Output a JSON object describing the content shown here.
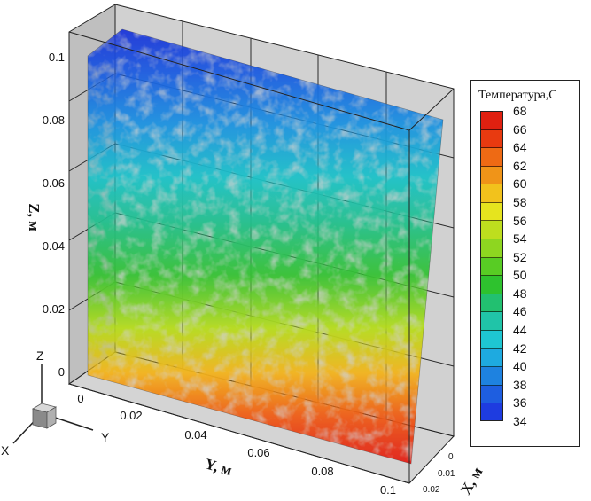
{
  "axes": {
    "z_title": "Z, м",
    "y_title": "Y, м",
    "x_title": "X, м",
    "z_ticks": [
      "0",
      "0.02",
      "0.04",
      "0.06",
      "0.08",
      "0.1"
    ],
    "y_ticks": [
      "0",
      "0.02",
      "0.04",
      "0.06",
      "0.08",
      "0.1"
    ],
    "x_ticks": [
      "0",
      "0.01",
      "0.02"
    ]
  },
  "triad": {
    "x": "X",
    "y": "Y",
    "z": "Z"
  },
  "legend": {
    "title": "Температура,C",
    "levels": [
      68,
      66,
      64,
      62,
      60,
      58,
      56,
      54,
      52,
      50,
      48,
      46,
      44,
      42,
      40,
      38,
      36,
      34
    ],
    "colors": [
      "#e02010",
      "#e83a10",
      "#ee6a14",
      "#f09418",
      "#f2c21c",
      "#e6e41e",
      "#bede1e",
      "#8ed620",
      "#58cc24",
      "#2ec22e",
      "#22c070",
      "#20c4a8",
      "#1ec6d2",
      "#1eaae0",
      "#1e82e0",
      "#1e5ee0",
      "#1e3ce0"
    ]
  }
}
